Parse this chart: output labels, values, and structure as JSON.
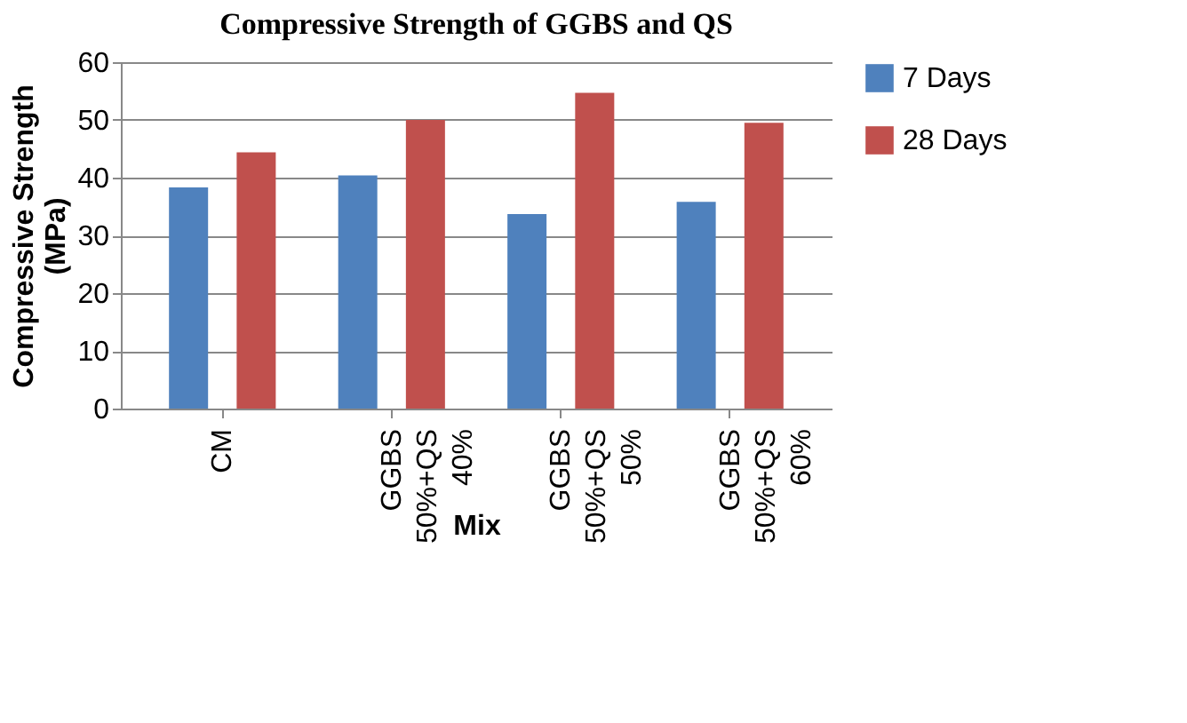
{
  "chart_data": {
    "type": "bar",
    "title": "Compressive Strength of GGBS and QS",
    "xlabel": "Mix",
    "ylabel": "Compressive Strength (MPa)",
    "categories": [
      "CM",
      "GGBS 50%+QS 40%",
      "GGBS 50%+QS 50%",
      "GGBS 50%+QS 60%"
    ],
    "series": [
      {
        "name": "7 Days",
        "color": "#4f81bd",
        "values": [
          38.3,
          40.4,
          33.7,
          35.8
        ]
      },
      {
        "name": "28 Days",
        "color": "#c0504d",
        "values": [
          44.4,
          50,
          54.7,
          49.5
        ]
      }
    ],
    "ylim": [
      0,
      60
    ],
    "yticks": [
      0,
      10,
      20,
      30,
      40,
      50,
      60
    ],
    "grid": "y",
    "legend": "right"
  }
}
